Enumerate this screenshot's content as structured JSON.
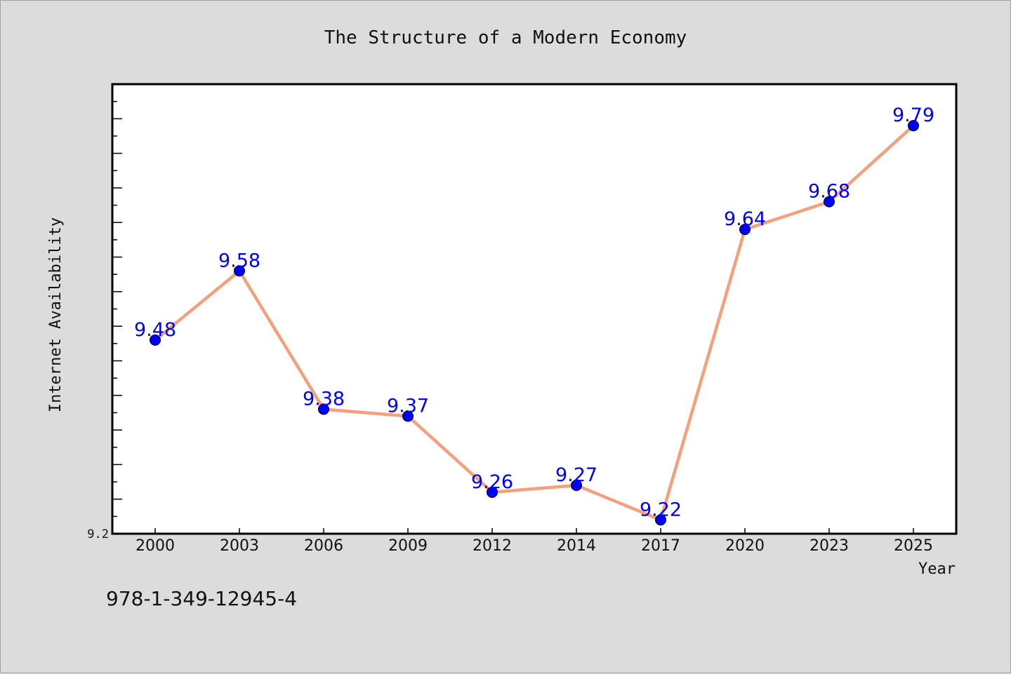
{
  "chart_data": {
    "type": "line",
    "title": "The Structure of a Modern Economy",
    "xlabel": "Year",
    "ylabel": "Internet Availability",
    "categories": [
      "2000",
      "2003",
      "2006",
      "2009",
      "2012",
      "2014",
      "2017",
      "2020",
      "2023",
      "2025"
    ],
    "series": [
      {
        "values": [
          9.48,
          9.58,
          9.38,
          9.37,
          9.26,
          9.27,
          9.22,
          9.64,
          9.68,
          9.79
        ],
        "labels": [
          "9.48",
          "9.58",
          "9.38",
          "9.37",
          "9.26",
          "9.27",
          "9.22",
          "9.64",
          "9.68",
          "9.79"
        ],
        "line_color": "#f4a07c",
        "marker_color": "#0000ff"
      }
    ],
    "ylim": [
      9.2,
      9.85
    ],
    "y_tick_labels": [
      "9.2"
    ],
    "grid": false,
    "legend": "none"
  },
  "annotation": "978-1-349-12945-4"
}
